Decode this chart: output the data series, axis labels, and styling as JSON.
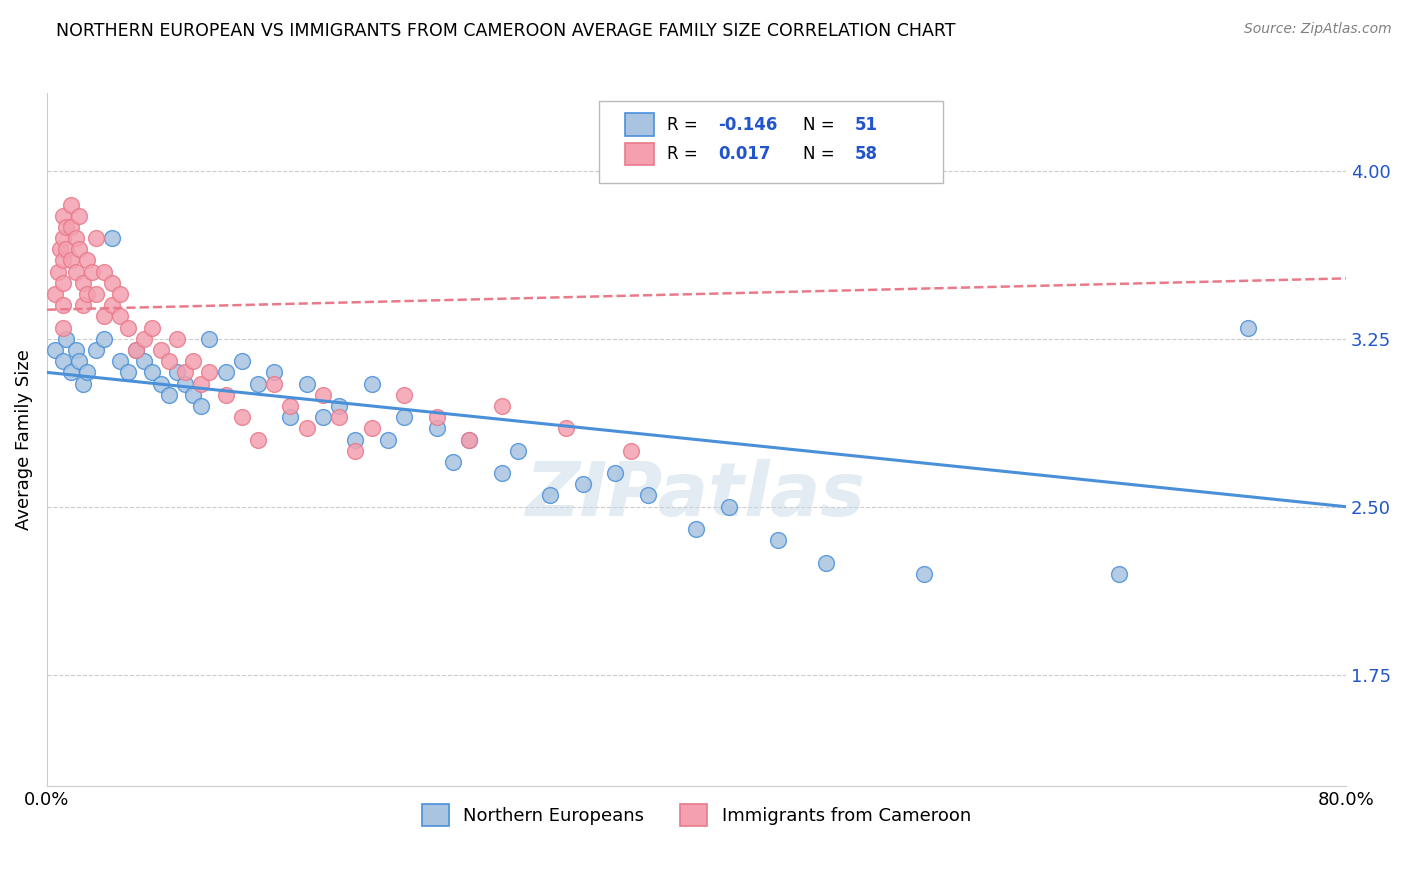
{
  "title": "NORTHERN EUROPEAN VS IMMIGRANTS FROM CAMEROON AVERAGE FAMILY SIZE CORRELATION CHART",
  "source": "Source: ZipAtlas.com",
  "ylabel": "Average Family Size",
  "xlim": [
    0.0,
    0.8
  ],
  "ylim": [
    1.25,
    4.35
  ],
  "yticks": [
    1.75,
    2.5,
    3.25,
    4.0
  ],
  "xticks": [
    0.0,
    0.1,
    0.2,
    0.3,
    0.4,
    0.5,
    0.6,
    0.7,
    0.8
  ],
  "xtick_labels": [
    "0.0%",
    "",
    "",
    "",
    "",
    "",
    "",
    "",
    "80.0%"
  ],
  "legend_labels": [
    "Northern Europeans",
    "Immigrants from Cameroon"
  ],
  "blue_R": "-0.146",
  "blue_N": "51",
  "pink_R": "0.017",
  "pink_N": "58",
  "blue_color": "#a8c4e0",
  "pink_color": "#f4a0b0",
  "blue_line_color": "#4a90d9",
  "pink_line_color": "#e87a8a",
  "watermark": "ZIPatlas",
  "blue_trend_x": [
    0.0,
    0.8
  ],
  "blue_trend_y": [
    3.1,
    2.5
  ],
  "pink_trend_x": [
    0.0,
    0.8
  ],
  "pink_trend_y": [
    3.38,
    3.52
  ],
  "blue_scatter_x": [
    0.005,
    0.01,
    0.012,
    0.015,
    0.018,
    0.02,
    0.022,
    0.025,
    0.03,
    0.035,
    0.04,
    0.045,
    0.05,
    0.055,
    0.06,
    0.065,
    0.07,
    0.075,
    0.08,
    0.085,
    0.09,
    0.095,
    0.1,
    0.11,
    0.12,
    0.13,
    0.14,
    0.15,
    0.16,
    0.17,
    0.18,
    0.19,
    0.2,
    0.21,
    0.22,
    0.24,
    0.25,
    0.26,
    0.28,
    0.29,
    0.31,
    0.33,
    0.35,
    0.37,
    0.4,
    0.42,
    0.45,
    0.48,
    0.54,
    0.66,
    0.74
  ],
  "blue_scatter_y": [
    3.2,
    3.15,
    3.25,
    3.1,
    3.2,
    3.15,
    3.05,
    3.1,
    3.2,
    3.25,
    3.7,
    3.15,
    3.1,
    3.2,
    3.15,
    3.1,
    3.05,
    3.0,
    3.1,
    3.05,
    3.0,
    2.95,
    3.25,
    3.1,
    3.15,
    3.05,
    3.1,
    2.9,
    3.05,
    2.9,
    2.95,
    2.8,
    3.05,
    2.8,
    2.9,
    2.85,
    2.7,
    2.8,
    2.65,
    2.75,
    2.55,
    2.6,
    2.65,
    2.55,
    2.4,
    2.5,
    2.35,
    2.25,
    2.2,
    2.2,
    3.3
  ],
  "pink_scatter_x": [
    0.005,
    0.007,
    0.008,
    0.01,
    0.01,
    0.01,
    0.01,
    0.01,
    0.01,
    0.012,
    0.012,
    0.015,
    0.015,
    0.015,
    0.018,
    0.018,
    0.02,
    0.02,
    0.022,
    0.022,
    0.025,
    0.025,
    0.028,
    0.03,
    0.03,
    0.035,
    0.035,
    0.04,
    0.04,
    0.045,
    0.045,
    0.05,
    0.055,
    0.06,
    0.065,
    0.07,
    0.075,
    0.08,
    0.085,
    0.09,
    0.095,
    0.1,
    0.11,
    0.12,
    0.13,
    0.14,
    0.15,
    0.16,
    0.17,
    0.18,
    0.19,
    0.2,
    0.22,
    0.24,
    0.26,
    0.28,
    0.32,
    0.36
  ],
  "pink_scatter_y": [
    3.45,
    3.55,
    3.65,
    3.8,
    3.7,
    3.6,
    3.5,
    3.4,
    3.3,
    3.75,
    3.65,
    3.85,
    3.75,
    3.6,
    3.7,
    3.55,
    3.8,
    3.65,
    3.5,
    3.4,
    3.6,
    3.45,
    3.55,
    3.7,
    3.45,
    3.55,
    3.35,
    3.5,
    3.4,
    3.45,
    3.35,
    3.3,
    3.2,
    3.25,
    3.3,
    3.2,
    3.15,
    3.25,
    3.1,
    3.15,
    3.05,
    3.1,
    3.0,
    2.9,
    2.8,
    3.05,
    2.95,
    2.85,
    3.0,
    2.9,
    2.75,
    2.85,
    3.0,
    2.9,
    2.8,
    2.95,
    2.85,
    2.75
  ]
}
